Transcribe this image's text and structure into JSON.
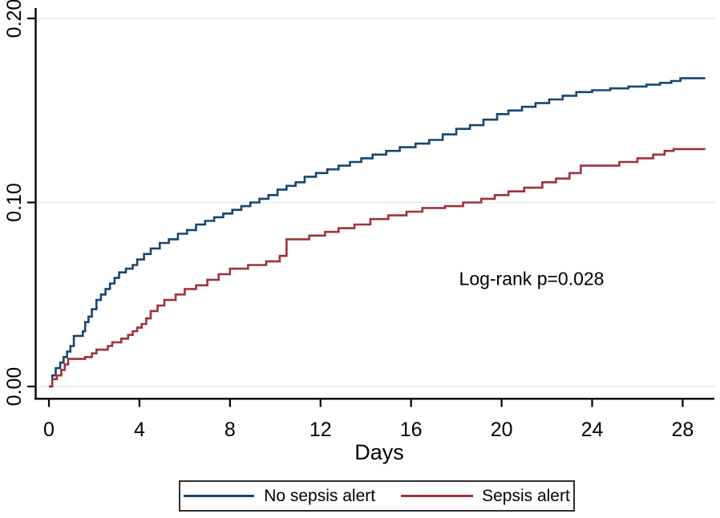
{
  "figure": {
    "background": "#ffffff"
  },
  "chart_data": {
    "type": "line",
    "subtype": "kaplan-meier-cumulative-incidence-step",
    "title": "",
    "xlabel": "Days",
    "ylabel": "",
    "xlim": [
      0,
      29
    ],
    "ylim": [
      0,
      0.2
    ],
    "x_ticks": [
      0,
      4,
      8,
      12,
      16,
      20,
      24,
      28
    ],
    "y_ticks": [
      {
        "value": 0.0,
        "label": "0.00"
      },
      {
        "value": 0.1,
        "label": "0.10"
      },
      {
        "value": 0.2,
        "label": "0.20"
      }
    ],
    "grid": "horizontal-only",
    "annotation": {
      "text": "Log-rank p=0.028",
      "x_day": 21.3,
      "y_value": 0.058
    },
    "legend": {
      "position": "bottom-center",
      "border": true
    },
    "colors": {
      "gridline": "#e4eef4",
      "axis": "#000000",
      "navy": "#17466f",
      "maroon": "#9f323c"
    },
    "series": [
      {
        "name": "No sepsis alert",
        "color": "#17466f",
        "points": [
          [
            0,
            0
          ],
          [
            0.15,
            0.006
          ],
          [
            0.3,
            0.01
          ],
          [
            0.5,
            0.013
          ],
          [
            0.65,
            0.016
          ],
          [
            0.8,
            0.019
          ],
          [
            0.95,
            0.022
          ],
          [
            1.1,
            0.0275
          ],
          [
            1.5,
            0.03
          ],
          [
            1.6,
            0.035
          ],
          [
            1.75,
            0.038
          ],
          [
            1.9,
            0.042
          ],
          [
            2.1,
            0.047
          ],
          [
            2.3,
            0.05
          ],
          [
            2.5,
            0.053
          ],
          [
            2.7,
            0.056
          ],
          [
            2.9,
            0.059
          ],
          [
            3.1,
            0.062
          ],
          [
            3.4,
            0.064
          ],
          [
            3.7,
            0.066
          ],
          [
            3.9,
            0.069
          ],
          [
            4.2,
            0.072
          ],
          [
            4.5,
            0.075
          ],
          [
            4.9,
            0.078
          ],
          [
            5.3,
            0.08
          ],
          [
            5.7,
            0.083
          ],
          [
            6.1,
            0.085
          ],
          [
            6.5,
            0.088
          ],
          [
            6.9,
            0.09
          ],
          [
            7.3,
            0.092
          ],
          [
            7.7,
            0.094
          ],
          [
            8.1,
            0.096
          ],
          [
            8.5,
            0.098
          ],
          [
            8.9,
            0.1
          ],
          [
            9.3,
            0.102
          ],
          [
            9.7,
            0.104
          ],
          [
            10.1,
            0.107
          ],
          [
            10.5,
            0.109
          ],
          [
            10.9,
            0.111
          ],
          [
            11.3,
            0.114
          ],
          [
            11.8,
            0.116
          ],
          [
            12.3,
            0.118
          ],
          [
            12.8,
            0.12
          ],
          [
            13.3,
            0.122
          ],
          [
            13.8,
            0.124
          ],
          [
            14.3,
            0.126
          ],
          [
            14.9,
            0.128
          ],
          [
            15.5,
            0.13
          ],
          [
            16.2,
            0.132
          ],
          [
            16.8,
            0.134
          ],
          [
            17.4,
            0.137
          ],
          [
            18,
            0.14
          ],
          [
            18.6,
            0.142
          ],
          [
            19.2,
            0.145
          ],
          [
            19.8,
            0.148
          ],
          [
            20.3,
            0.15
          ],
          [
            20.9,
            0.152
          ],
          [
            21.5,
            0.154
          ],
          [
            22.1,
            0.156
          ],
          [
            22.7,
            0.158
          ],
          [
            23.3,
            0.16
          ],
          [
            24,
            0.161
          ],
          [
            24.8,
            0.162
          ],
          [
            25.6,
            0.163
          ],
          [
            26.4,
            0.164
          ],
          [
            27,
            0.165
          ],
          [
            27.5,
            0.166
          ],
          [
            27.9,
            0.1675
          ],
          [
            29,
            0.1675
          ]
        ]
      },
      {
        "name": "Sepsis alert",
        "color": "#9f323c",
        "points": [
          [
            0,
            0
          ],
          [
            0.15,
            0.004
          ],
          [
            0.35,
            0.006
          ],
          [
            0.55,
            0.009
          ],
          [
            0.7,
            0.012
          ],
          [
            0.85,
            0.015
          ],
          [
            1.6,
            0.016
          ],
          [
            1.9,
            0.018
          ],
          [
            2.1,
            0.02
          ],
          [
            2.6,
            0.022
          ],
          [
            2.8,
            0.024
          ],
          [
            3.2,
            0.026
          ],
          [
            3.5,
            0.028
          ],
          [
            3.7,
            0.03
          ],
          [
            3.9,
            0.032
          ],
          [
            4.1,
            0.034
          ],
          [
            4.3,
            0.037
          ],
          [
            4.5,
            0.041
          ],
          [
            4.8,
            0.044
          ],
          [
            5.1,
            0.047
          ],
          [
            5.6,
            0.05
          ],
          [
            6,
            0.053
          ],
          [
            6.5,
            0.055
          ],
          [
            7,
            0.058
          ],
          [
            7.5,
            0.061
          ],
          [
            8,
            0.064
          ],
          [
            8.8,
            0.066
          ],
          [
            9.6,
            0.068
          ],
          [
            10.2,
            0.071
          ],
          [
            10.5,
            0.08
          ],
          [
            11.5,
            0.082
          ],
          [
            12.2,
            0.084
          ],
          [
            12.8,
            0.086
          ],
          [
            13.5,
            0.088
          ],
          [
            14.2,
            0.091
          ],
          [
            15,
            0.093
          ],
          [
            15.8,
            0.095
          ],
          [
            16.5,
            0.097
          ],
          [
            17.5,
            0.098
          ],
          [
            18.3,
            0.1
          ],
          [
            19.1,
            0.102
          ],
          [
            19.7,
            0.104
          ],
          [
            20.3,
            0.106
          ],
          [
            21,
            0.108
          ],
          [
            21.8,
            0.111
          ],
          [
            22.4,
            0.113
          ],
          [
            23,
            0.116
          ],
          [
            23.5,
            0.12
          ],
          [
            25.2,
            0.122
          ],
          [
            26,
            0.124
          ],
          [
            26.7,
            0.126
          ],
          [
            27.2,
            0.128
          ],
          [
            27.6,
            0.129
          ],
          [
            29,
            0.129
          ]
        ]
      }
    ]
  }
}
